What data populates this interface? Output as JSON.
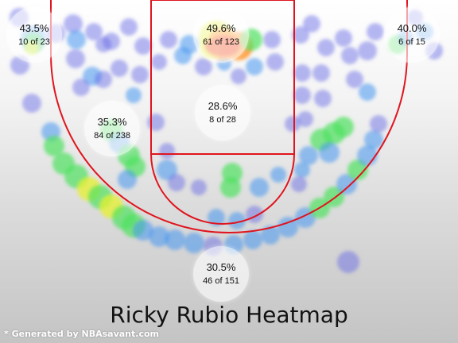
{
  "chart_data": {
    "type": "heatmap",
    "title": "Ricky Rubio Heatmap",
    "colorscale": [
      "#5b5fe0",
      "#3fb6f0",
      "#4fe35a",
      "#f5f22a",
      "#ff9a2a",
      "#f23a2a"
    ],
    "zones": [
      {
        "id": "left-corner-three",
        "pct": "43.5%",
        "made": 10,
        "attempts": 23,
        "label": "10 of 23"
      },
      {
        "id": "restricted-area",
        "pct": "49.6%",
        "made": 61,
        "attempts": 123,
        "label": "61 of 123"
      },
      {
        "id": "right-corner-three",
        "pct": "40.0%",
        "made": 6,
        "attempts": 15,
        "label": "6 of 15"
      },
      {
        "id": "mid-range",
        "pct": "35.3%",
        "made": 84,
        "attempts": 238,
        "label": "84 of 238"
      },
      {
        "id": "paint",
        "pct": "28.6%",
        "made": 8,
        "attempts": 28,
        "label": "8 of 28"
      },
      {
        "id": "above-break-three",
        "pct": "30.5%",
        "made": 46,
        "attempts": 151,
        "label": "46 of 151"
      }
    ]
  },
  "credit": "* Generated by NBAsavant.com",
  "colors": {
    "court_lines": "#e0141e"
  }
}
